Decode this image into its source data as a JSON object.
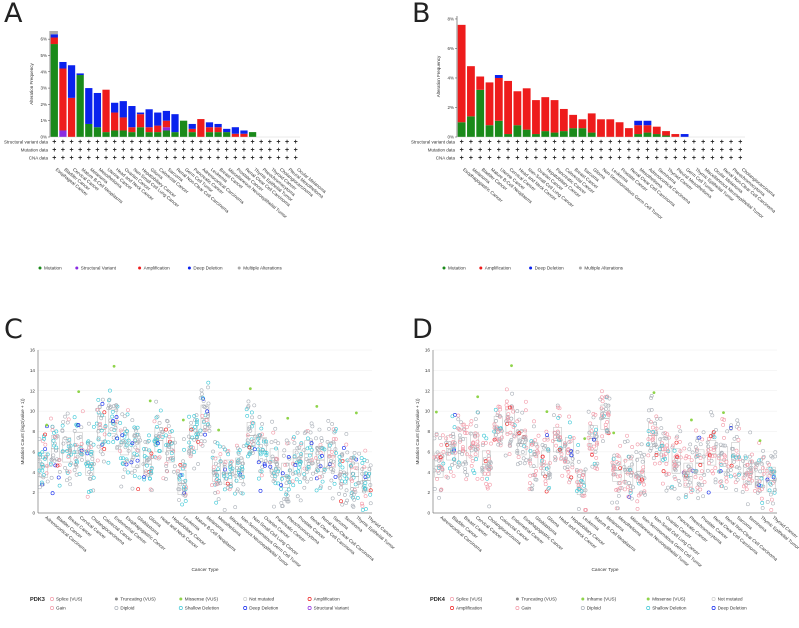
{
  "panels": {
    "A": {
      "label": "A"
    },
    "B": {
      "label": "B"
    },
    "C": {
      "label": "C"
    },
    "D": {
      "label": "D"
    }
  },
  "row_labels": [
    "Structural variant data",
    "Mutation data",
    "CNA data"
  ],
  "colors": {
    "mutation": "#1a8a1a",
    "structural_variant": "#8a2be2",
    "amplification": "#ee1c1c",
    "deep_deletion": "#0a22ee",
    "multiple": "#aaaaaa"
  },
  "chart_data": [
    {
      "id": "A",
      "type": "bar",
      "stacked": true,
      "ylabel": "Alteration Frequency",
      "ylim": [
        0,
        6.5
      ],
      "yticks": [
        "0%",
        "1%",
        "2%",
        "3%",
        "4%",
        "5%",
        "6%"
      ],
      "categories": [
        "Esophageal Cancer",
        "Bladder Cancer",
        "Cervical Cancer",
        "Mature B-Cell Neoplasms",
        "Melanoma",
        "Mesothelioma",
        "Uterine Cancer",
        "Head and Neck Cancer",
        "Ovarian Cancer",
        "Non-Small Cell Lung Cancer",
        "Hepatobiliary Cancer",
        "Glioma",
        "Colorectal Cancer",
        "Sarcoma",
        "Renal Non-Clear Cell Carcinoma",
        "Germ Cell Tumor",
        "Pancreatic Cancer",
        "Adrenocortical Carcinoma",
        "Leukemia",
        "Breast Cancer",
        "Miscellaneous Neuroepithelial Tumor",
        "Prostate Cancer",
        "Renal Clear Cell Carcinoma",
        "Thymic Epithelial Tumor",
        "Pheochromocytoma",
        "Thyroid Cancer",
        "Cholangiocarcinoma",
        "Pleural Mesothelioma",
        "Ocular Melanoma"
      ],
      "series": [
        {
          "name": "Mutation",
          "key": "mutation",
          "values": [
            5.7,
            0,
            0,
            3.8,
            0.8,
            0.6,
            0.3,
            0.4,
            0.4,
            0.3,
            0.6,
            0.3,
            0.3,
            0.4,
            0.3,
            1.0,
            0.3,
            0,
            0.3,
            0.3,
            0.3,
            0,
            0,
            0.3,
            0,
            0,
            0,
            0,
            0
          ]
        },
        {
          "name": "Structural Variant",
          "key": "structural_variant",
          "values": [
            0,
            0.4,
            0,
            0,
            0,
            0,
            0,
            0,
            0,
            0,
            0,
            0,
            0,
            0.2,
            0,
            0,
            0,
            0,
            0,
            0,
            0,
            0,
            0,
            0,
            0,
            0,
            0,
            0,
            0
          ]
        },
        {
          "name": "Amplification",
          "key": "amplification",
          "values": [
            0.4,
            3.8,
            2.4,
            0,
            0,
            0,
            2.6,
            1.1,
            0.8,
            0.3,
            0.8,
            0.3,
            0.4,
            0.4,
            0,
            0,
            0.2,
            1.1,
            0.3,
            0.3,
            0,
            0.2,
            0.2,
            0,
            0,
            0,
            0,
            0,
            0
          ]
        },
        {
          "name": "Deep Deletion",
          "key": "deep_deletion",
          "values": [
            0.2,
            0.4,
            2.0,
            0.1,
            2.2,
            2.1,
            0,
            0.6,
            1.0,
            1.3,
            0.1,
            1.1,
            0.8,
            0.6,
            1.1,
            0,
            0.3,
            0,
            0.3,
            0.2,
            0.2,
            0.4,
            0.2,
            0,
            0,
            0,
            0,
            0,
            0
          ]
        },
        {
          "name": "Multiple Alterations",
          "key": "multiple",
          "values": [
            0.2,
            0,
            0,
            0,
            0,
            0,
            0,
            0,
            0,
            0,
            0,
            0,
            0,
            0,
            0,
            0,
            0,
            0,
            0,
            0,
            0,
            0,
            0,
            0,
            0,
            0,
            0,
            0,
            0
          ]
        }
      ],
      "legend": [
        "Mutation",
        "Structural Variant",
        "Amplification",
        "Deep Deletion",
        "Multiple Alterations"
      ]
    },
    {
      "id": "B",
      "type": "bar",
      "stacked": true,
      "ylabel": "Alteration Frequency",
      "ylim": [
        0,
        8.2
      ],
      "yticks": [
        "0%",
        "2%",
        "4%",
        "6%",
        "8%"
      ],
      "categories": [
        "Esophagogastric Cancer",
        "Melanoma",
        "Bladder Cancer",
        "Mature B-Cell Neoplasms",
        "Uterine Cancer",
        "Cervical Cancer",
        "Head and Neck Cancer",
        "Non-Small Cell Lung Cancer",
        "Ovarian Cancer",
        "Hepatobiliary Cancer",
        "Pancreatic Cancer",
        "Colorectal Cancer",
        "Breast Cancer",
        "Sarcoma",
        "Glioma",
        "Non-Seminomatous Germ Cell Tumor",
        "Leukemia",
        "Prostate Cancer",
        "Renal Clear Cell Carcinoma",
        "Mesothelioma",
        "Adrenocortical Carcinoma",
        "Seminoma",
        "Thyroid Cancer",
        "Pleural Mesothelioma",
        "Germ Cell Tumor",
        "Thymic Epithelial Tumor",
        "Miscellaneous Neuroepithelial Tumor",
        "Ocular Melanoma",
        "Renal Non-Clear Cell Carcinoma",
        "Pheochromocytoma",
        "Cholangiocarcinoma"
      ],
      "series": [
        {
          "name": "Mutation",
          "key": "mutation",
          "values": [
            1.0,
            1.4,
            3.2,
            0.8,
            1.1,
            0.2,
            0.8,
            0.5,
            0.2,
            0.4,
            0.3,
            0.4,
            0.6,
            0.6,
            0.3,
            0,
            0,
            0,
            0,
            0.2,
            0.3,
            0.2,
            0.1,
            0,
            0,
            0,
            0,
            0,
            0,
            0,
            0
          ]
        },
        {
          "name": "Amplification",
          "key": "amplification",
          "values": [
            6.6,
            3.4,
            0.9,
            2.9,
            2.9,
            3.6,
            2.3,
            2.8,
            2.3,
            2.3,
            2.2,
            1.5,
            0.9,
            0.6,
            1.3,
            1.2,
            1.2,
            1.0,
            0.6,
            0.6,
            0.5,
            0.5,
            0.3,
            0.2,
            0,
            0,
            0,
            0,
            0,
            0,
            0
          ]
        },
        {
          "name": "Deep Deletion",
          "key": "deep_deletion",
          "values": [
            0,
            0,
            0,
            0,
            0.2,
            0,
            0,
            0,
            0,
            0,
            0,
            0,
            0,
            0,
            0,
            0,
            0,
            0,
            0,
            0.3,
            0.3,
            0,
            0,
            0,
            0.2,
            0,
            0,
            0,
            0,
            0,
            0
          ]
        },
        {
          "name": "Multiple Alterations",
          "key": "multiple",
          "values": [
            0,
            0,
            0,
            0,
            0,
            0,
            0,
            0,
            0,
            0,
            0,
            0,
            0,
            0,
            0,
            0,
            0,
            0,
            0,
            0,
            0,
            0,
            0,
            0,
            0,
            0,
            0,
            0,
            0,
            0,
            0
          ]
        }
      ],
      "legend": [
        "Mutation",
        "Amplification",
        "Deep Deletion",
        "Multiple Alterations"
      ]
    },
    {
      "id": "C",
      "type": "scatter",
      "gene": "PDK3",
      "xlabel": "Cancer Type",
      "ylabel": "Mutation Count (log2(value + 1))",
      "ylim": [
        0,
        16
      ],
      "yticks": [
        0,
        2,
        4,
        6,
        8,
        10,
        12,
        14,
        16
      ],
      "categories": [
        "Adrenocortical Carcinoma",
        "Bladder Cancer",
        "Breast Cancer",
        "Cervical Cancer",
        "Cholangiocarcinoma",
        "Colorectal Cancer",
        "Endometrial Cancer",
        "Esophagogastric Cancer",
        "Glioblastoma",
        "Glioma",
        "Head and Neck Cancer",
        "Hepatobiliary Cancer",
        "Leukemia",
        "Mature B-Cell Neoplasms",
        "Melanoma",
        "Mesothelioma",
        "Miscellaneous Neuroepithelial Tumor",
        "Non-Seminomatous Germ Cell Tumor",
        "Non-Small Cell Lung Cancer",
        "Ovarian Cancer",
        "Pancreatic Cancer",
        "Pheochromocytoma",
        "Prostate Cancer",
        "Renal Clear Cell Carcinoma",
        "Renal Non-Clear Cell Carcinoma",
        "Sarcoma",
        "Seminoma",
        "Thymic Epithelial Tumor",
        "Thyroid Cancer"
      ],
      "medians": [
        4.6,
        6.3,
        6.1,
        6.6,
        4.8,
        8.2,
        8.9,
        6.8,
        5.6,
        4.8,
        7.1,
        6.1,
        2.9,
        7.3,
        9.3,
        4.2,
        3.9,
        4.1,
        7.6,
        6.1,
        5.0,
        3.6,
        4.9,
        5.8,
        5.2,
        5.6,
        3.9,
        3.6,
        3.2
      ],
      "legend": [
        "Splice (VUS)",
        "Truncating (VUS)",
        "Missense (VUS)",
        "Not mutated",
        "Amplification",
        "Gain",
        "Diploid",
        "Shallow Deletion",
        "Deep Deletion",
        "Structural Variant"
      ]
    },
    {
      "id": "D",
      "type": "scatter",
      "gene": "PDK4",
      "xlabel": "Cancer Type",
      "ylabel": "Mutation Count (log2(value + 1))",
      "ylim": [
        0,
        16
      ],
      "yticks": [
        0,
        2,
        4,
        6,
        8,
        10,
        12,
        14,
        16
      ],
      "categories": [
        "Adrenocortical Carcinoma",
        "Bladder Cancer",
        "Breast Cancer",
        "Cervical Cancer",
        "Cholangiocarcinoma",
        "Colorectal Cancer",
        "Endometrial Cancer",
        "Esophagogastric Cancer",
        "Glioblastoma",
        "Glioma",
        "Head and Neck Cancer",
        "Hepatobiliary Cancer",
        "Leukemia",
        "Mature B-Cell Neoplasms",
        "Melanoma",
        "Mesothelioma",
        "Miscellaneous Neuroepithelial Tumor",
        "Non-Seminomatous Germ Cell Tumor",
        "Non-Small Cell Lung Cancer",
        "Ovarian Cancer",
        "Pancreatic Cancer",
        "Pheochromocytoma",
        "Prostate Cancer",
        "Renal Clear Cell Carcinoma",
        "Renal Non-Clear Cell Carcinoma",
        "Sarcoma",
        "Seminoma",
        "Thymic Epithelial Tumor",
        "Thyroid Cancer"
      ],
      "medians": [
        4.6,
        6.3,
        6.1,
        6.6,
        4.8,
        8.2,
        8.9,
        6.8,
        5.6,
        4.8,
        7.1,
        6.1,
        2.9,
        7.3,
        9.3,
        4.2,
        3.9,
        4.1,
        7.6,
        6.1,
        5.0,
        3.6,
        4.9,
        5.8,
        5.2,
        5.6,
        3.9,
        3.6,
        3.2
      ],
      "legend": [
        "Splice (VUS)",
        "Truncating (VUS)",
        "Inframe (VUS)",
        "Missense (VUS)",
        "Not mutated",
        "Amplification",
        "Gain",
        "Diploid",
        "Shallow Deletion",
        "Deep Deletion"
      ]
    }
  ]
}
